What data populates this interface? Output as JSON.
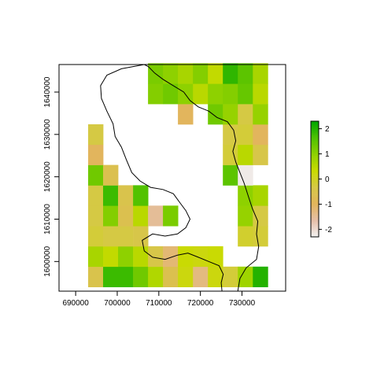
{
  "chart_data": {
    "type": "heatmap",
    "x_ticks": [
      690000,
      700000,
      710000,
      720000,
      730000
    ],
    "y_ticks": [
      1600000,
      1610000,
      1620000,
      1630000,
      1640000
    ],
    "xlim": [
      686000,
      740500
    ],
    "ylim": [
      1593000,
      1646500
    ],
    "cell_x0": [
      693000,
      696600,
      700200,
      703800,
      707400,
      711000,
      714600,
      718200,
      721800,
      725400,
      729000,
      732600
    ],
    "cell_y0": [
      1594000,
      1598800,
      1603600,
      1608400,
      1613200,
      1618000,
      1622800,
      1627600,
      1632400,
      1637200,
      1642000
    ],
    "cell_w": 3600,
    "cell_h": 4800,
    "grid_values": [
      [
        -0.5,
        1.8,
        1.8,
        1.3,
        0.6,
        -0.6,
        0.2,
        -1.3,
        0.2,
        -0.2,
        0.8,
        2.0
      ],
      [
        0.7,
        0.4,
        1.0,
        0.5,
        -0.4,
        -1.2,
        0.3,
        0.2,
        0.3,
        null,
        null,
        null
      ],
      [
        -0.2,
        -0.3,
        -0.3,
        -0.4,
        null,
        null,
        null,
        null,
        null,
        null,
        -0.1,
        -0.2
      ],
      [
        -0.3,
        1.1,
        -0.6,
        0.5,
        -1.5,
        1.2,
        null,
        null,
        null,
        null,
        0.9,
        -0.3
      ],
      [
        -0.3,
        1.8,
        -0.5,
        1.6,
        null,
        null,
        null,
        null,
        null,
        null,
        1.0,
        0.7
      ],
      [
        1.3,
        -0.6,
        null,
        null,
        null,
        null,
        null,
        null,
        null,
        1.5,
        -2.2,
        null
      ],
      [
        -1.0,
        null,
        null,
        null,
        null,
        null,
        null,
        null,
        null,
        -0.2,
        0.5,
        -0.4
      ],
      [
        -0.3,
        null,
        null,
        null,
        null,
        null,
        null,
        null,
        null,
        -0.3,
        -0.2,
        -1.0
      ],
      [
        null,
        null,
        null,
        null,
        null,
        null,
        -1.0,
        null,
        1.3,
        0.9,
        -0.3,
        0.9
      ],
      [
        null,
        null,
        null,
        null,
        1.1,
        1.3,
        1.0,
        0.5,
        1.0,
        1.1,
        1.4,
        0.5
      ],
      [
        null,
        null,
        null,
        null,
        null,
        null,
        null,
        null,
        null,
        null,
        null,
        null
      ]
    ],
    "top_row_values": [
      null,
      null,
      null,
      null,
      1.2,
      1.0,
      0.7,
      1.1,
      0.4,
      1.9,
      1.5,
      0.7
    ],
    "legend_ticks": [
      -2,
      -1,
      0,
      1,
      2
    ],
    "zlim": [
      -2.3,
      2.3
    ],
    "legend_position": "right",
    "colors": {
      "palette": [
        "#f2f2f2",
        "#e5bfa8",
        "#e2b55b",
        "#d6c847",
        "#c8db00",
        "#8fd100",
        "#4ec100",
        "#00a600"
      ],
      "outline": "#000000",
      "frame": "#000000"
    }
  }
}
